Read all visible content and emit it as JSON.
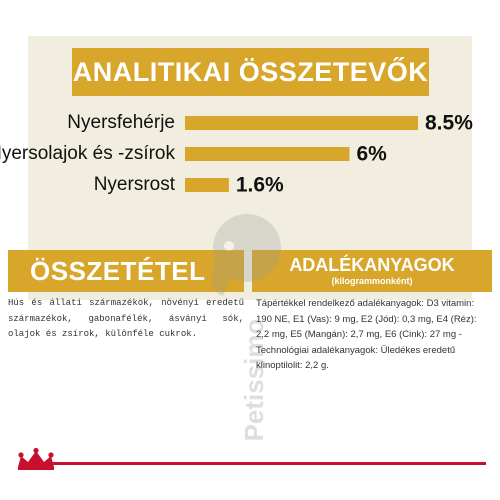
{
  "header": {
    "title": "ANALITIKAI ÖSSZETEVŐK"
  },
  "chart_data": {
    "type": "bar",
    "orientation": "horizontal",
    "categories": [
      "Nyersfehérje",
      "Nyersolajok és -zsírok",
      "Nyersrost"
    ],
    "values": [
      8.5,
      6,
      1.6
    ],
    "value_labels": [
      "8.5%",
      "6%",
      "1.6%"
    ],
    "bar_color": "#d8a62a",
    "xlim": [
      0,
      8.5
    ]
  },
  "sections": {
    "composition": {
      "title": "ÖSSZETÉTEL",
      "text": "Hús és állati származékok, növényi eredetű származékok, gabonafélék, ásványi sók, olajok és zsírok, különféle cukrok."
    },
    "additives": {
      "title": "ADALÉKANYAGOK",
      "subtitle": "(kilogrammonként)",
      "text": "Tápértékkel rendelkező adalékanyagok: D3 vitamin: 190 NE, E1 (Vas): 9 mg, E2 (Jód): 0,3 mg, E4 (Réz): 2,2 mg, E5 (Mangán): 2,7 mg, E6 (Cink): 27 mg - Technológiai adalékanyagok: Üledékes eredetű klinoptilolit: 2,2 g."
    }
  },
  "watermark": {
    "text": "Petissimo"
  },
  "colors": {
    "gold": "#d8a62a",
    "cream": "#f1eddf",
    "red": "#c8102e"
  }
}
